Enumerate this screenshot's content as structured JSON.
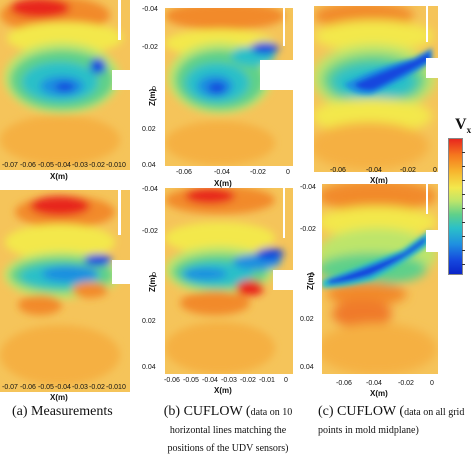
{
  "colors": {
    "background": "#f5c45a",
    "red": "#e8261e",
    "orange": "#f5781e",
    "yellow": "#f3e84c",
    "green": "#5fd08a",
    "cyan": "#2bc0c8",
    "blue": "#1547de",
    "white": "#ffffff"
  },
  "legend": {
    "title_main": "V",
    "title_sub": "x"
  },
  "panels": {
    "a_top": {
      "xticks": [
        "-0.07",
        "-0.06",
        "-0.05",
        "-0.04",
        "-0.03",
        "-0.02",
        "-0.01",
        "0"
      ],
      "xlabel": "X(m)",
      "zticks": []
    },
    "a_bottom": {
      "xticks": [
        "-0.07",
        "-0.06",
        "-0.05",
        "-0.04",
        "-0.03",
        "-0.02",
        "-0.01",
        "0"
      ],
      "xlabel": "X(m)",
      "zticks": []
    },
    "b_top": {
      "xticks": [
        "-0.06",
        "-0.04",
        "-0.02",
        "0"
      ],
      "xlabel": "X(m)",
      "zticks": [
        "-0.04",
        "-0.02",
        "0",
        "0.02",
        "0.04"
      ],
      "zlabel": "Z(m)"
    },
    "b_bottom": {
      "xticks": [
        "-0.06",
        "-0.05",
        "-0.04",
        "-0.03",
        "-0.02",
        "-0.01",
        "0"
      ],
      "xlabel": "X(m)",
      "zticks": [
        "-0.04",
        "-0.02",
        "0",
        "0.02",
        "0.04"
      ],
      "zlabel": "Z(m)"
    },
    "c_top": {
      "xticks": [
        "-0.06",
        "-0.04",
        "-0.02",
        "0"
      ],
      "xlabel": "X(m)"
    },
    "c_bottom": {
      "xticks": [
        "-0.06",
        "-0.04",
        "-0.02",
        "0"
      ],
      "xlabel": "X(m)",
      "zticks": [
        "-0.04",
        "-0.02",
        "0",
        "0.02",
        "0.04"
      ],
      "zlabel": "Z(m)"
    }
  },
  "captions": {
    "a": "(a)  Measurements",
    "b_main": "(b) CUFLOW (",
    "b_note": "data on 10 horizontal lines matching the positions of the UDV sensors)",
    "c_main": "(c)  CUFLOW (",
    "c_note": "data on all grid points in mold midplane)"
  }
}
